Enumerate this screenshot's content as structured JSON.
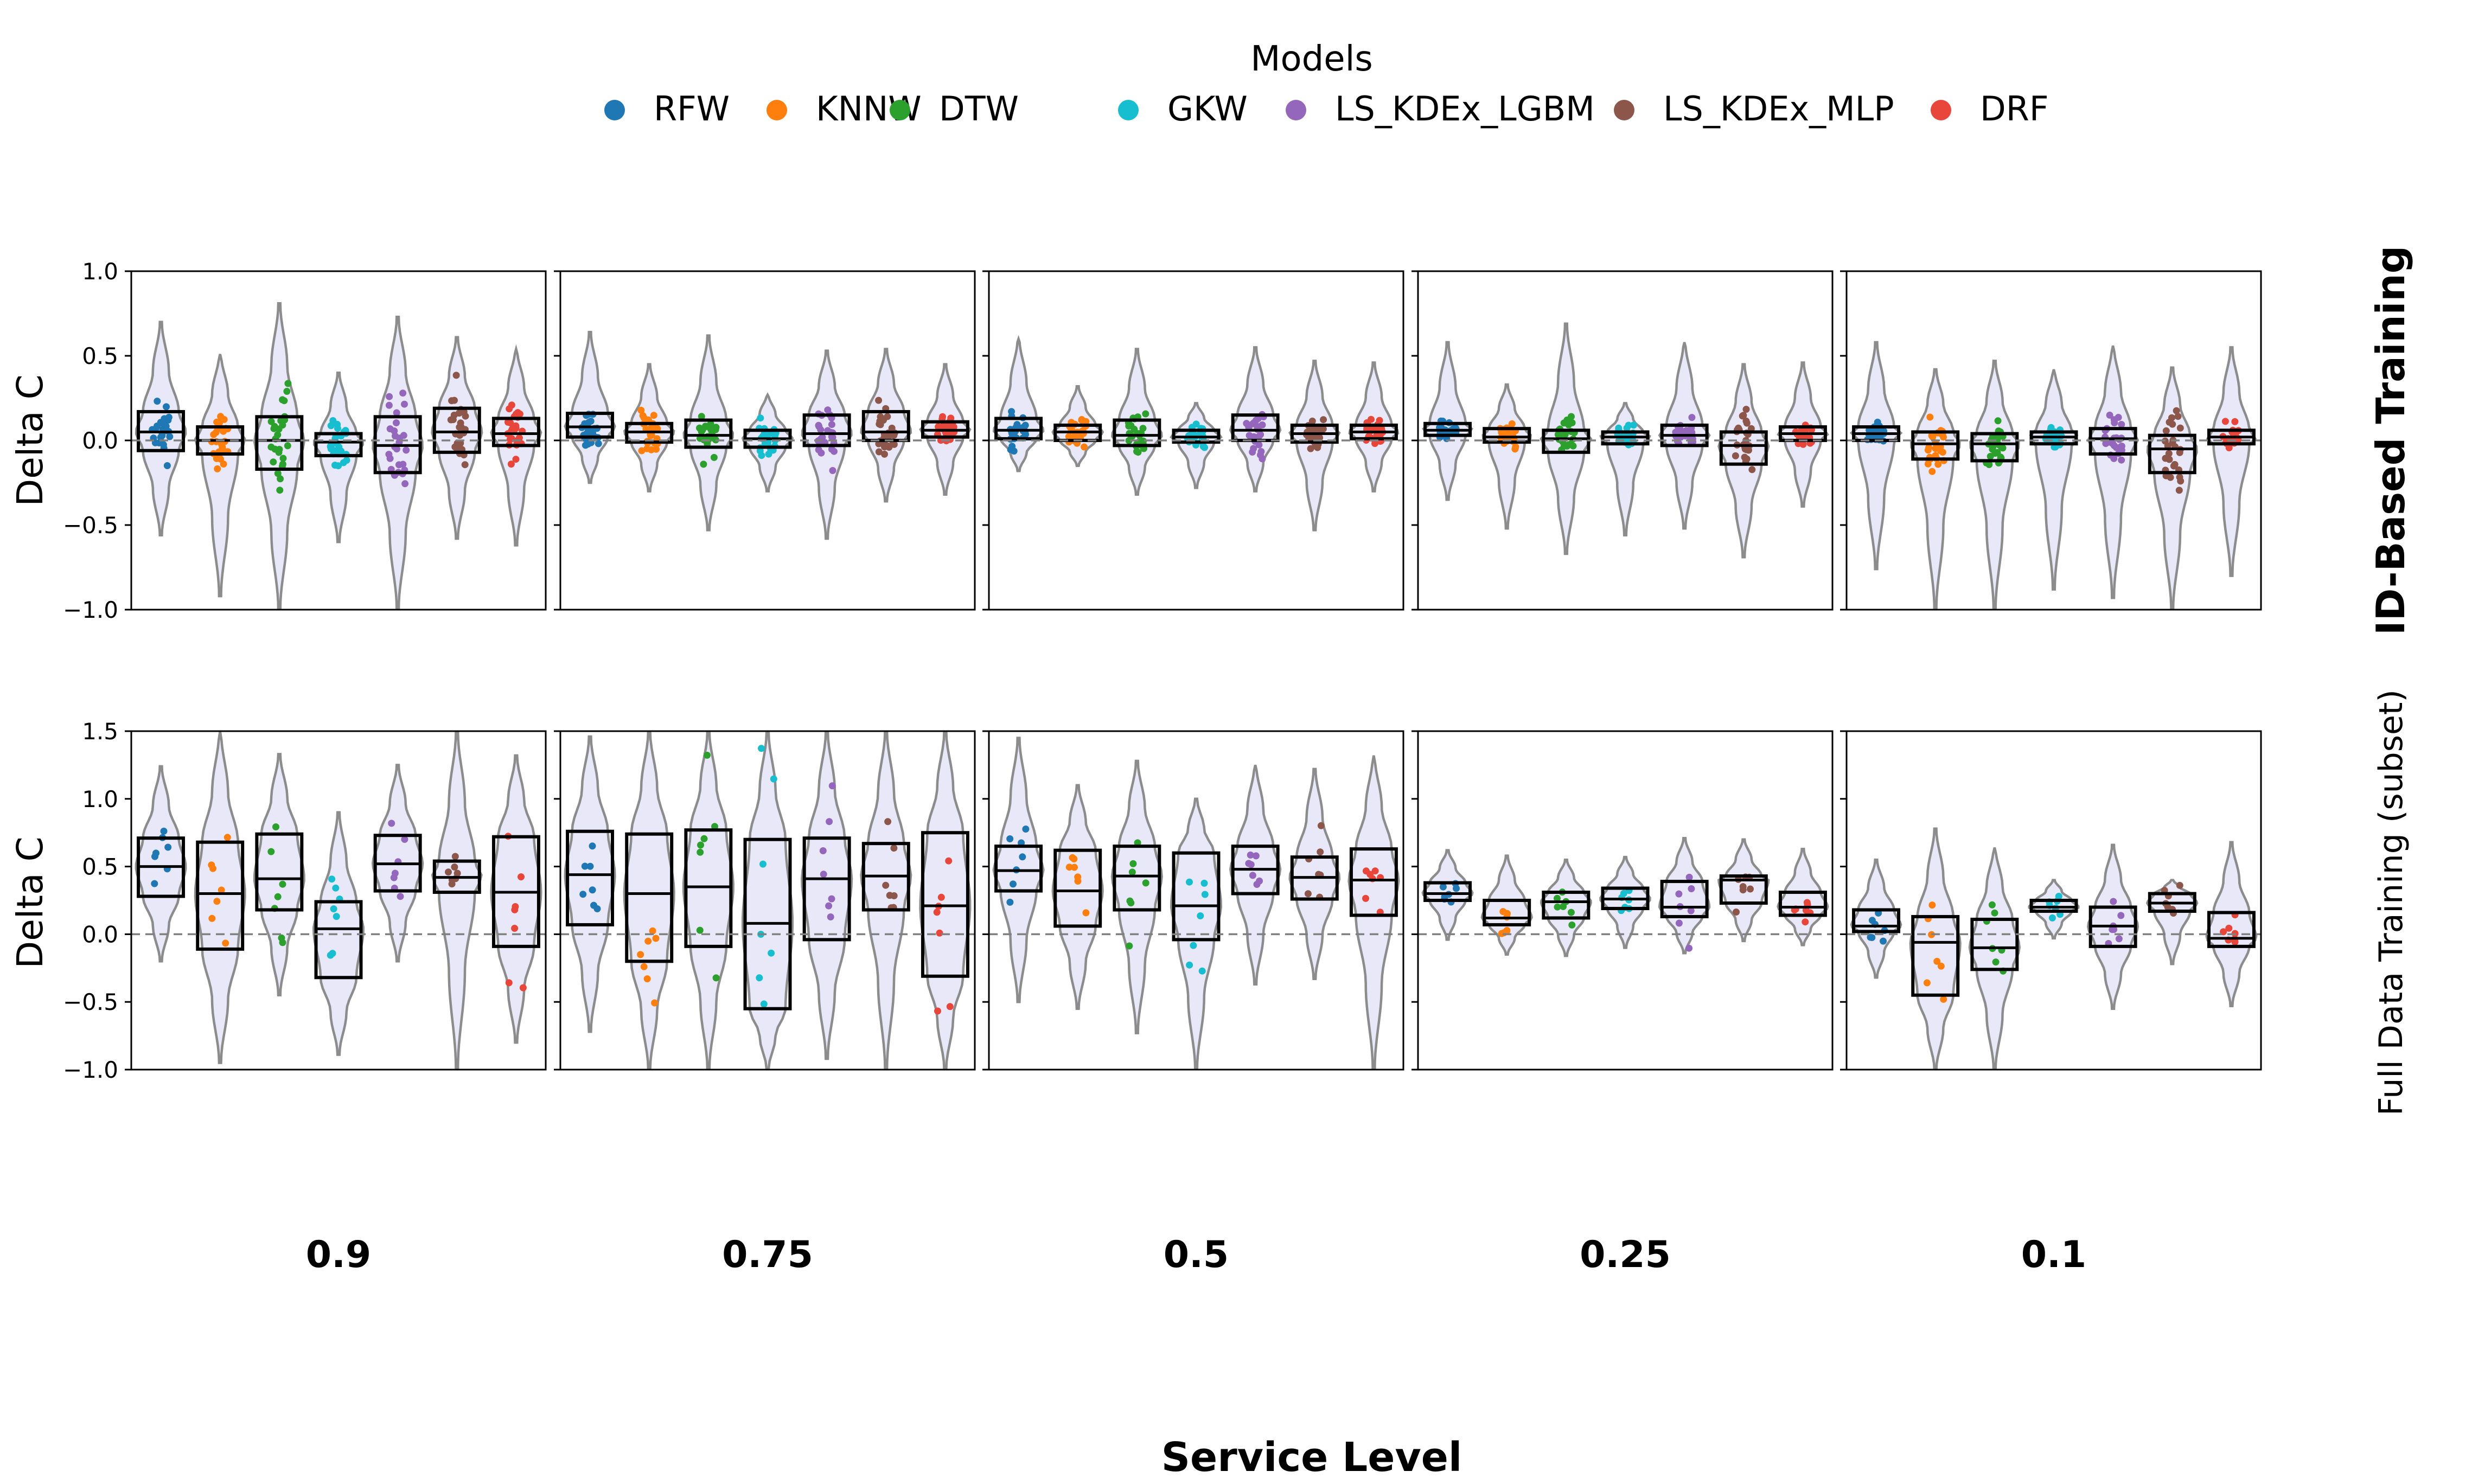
{
  "legend": {
    "title": "Models",
    "items": [
      {
        "name": "RFW",
        "color": "#1f77b4"
      },
      {
        "name": "KNNW",
        "color": "#ff7f0e"
      },
      {
        "name": "DTW",
        "color": "#2ca02c"
      },
      {
        "name": "GKW",
        "color": "#17becf"
      },
      {
        "name": "LS_KDEx_LGBM",
        "color": "#9467bd"
      },
      {
        "name": "LS_KDEx_MLP",
        "color": "#8c564b"
      },
      {
        "name": "DRF",
        "color": "#e8463a"
      }
    ]
  },
  "row_labels": [
    "ID-Based Training",
    "Full Data Training (subset)"
  ],
  "ylabel": "Delta C",
  "xlabel": "Service Level",
  "service_levels": [
    "0.9",
    "0.75",
    "0.5",
    "0.25",
    "0.1"
  ],
  "chart_data": {
    "type": "violin+box+strip",
    "shared_y_per_row": true,
    "reference_line_y": 0,
    "rows": [
      {
        "name": "ID-Based Training",
        "ylim": [
          -1.0,
          1.0
        ],
        "yticks": [
          "1.0",
          "0.5",
          "0.0",
          "−0.5",
          "−1.0"
        ],
        "ytick_values": [
          1.0,
          0.5,
          0.0,
          -0.5,
          -1.0
        ],
        "panels": [
          {
            "service_level": "0.9",
            "models": [
              {
                "q1": -0.06,
                "median": 0.05,
                "q3": 0.17,
                "vmin": -0.56,
                "vmax": 0.7
              },
              {
                "q1": -0.08,
                "median": 0.0,
                "q3": 0.08,
                "vmin": -0.92,
                "vmax": 0.51
              },
              {
                "q1": -0.17,
                "median": 0.0,
                "q3": 0.14,
                "vmin": -1.0,
                "vmax": 0.81
              },
              {
                "q1": -0.09,
                "median": -0.01,
                "q3": 0.04,
                "vmin": -0.6,
                "vmax": 0.4
              },
              {
                "q1": -0.19,
                "median": -0.03,
                "q3": 0.14,
                "vmin": -1.0,
                "vmax": 0.73
              },
              {
                "q1": -0.07,
                "median": 0.05,
                "q3": 0.19,
                "vmin": -0.58,
                "vmax": 0.61
              },
              {
                "q1": -0.03,
                "median": 0.04,
                "q3": 0.13,
                "vmin": -0.62,
                "vmax": 0.54
              }
            ]
          },
          {
            "service_level": "0.75",
            "models": [
              {
                "q1": 0.02,
                "median": 0.08,
                "q3": 0.16,
                "vmin": -0.25,
                "vmax": 0.64
              },
              {
                "q1": -0.01,
                "median": 0.05,
                "q3": 0.1,
                "vmin": -0.3,
                "vmax": 0.45
              },
              {
                "q1": -0.04,
                "median": 0.03,
                "q3": 0.12,
                "vmin": -0.53,
                "vmax": 0.62
              },
              {
                "q1": -0.04,
                "median": 0.01,
                "q3": 0.06,
                "vmin": -0.3,
                "vmax": 0.27
              },
              {
                "q1": -0.03,
                "median": 0.04,
                "q3": 0.15,
                "vmin": -0.58,
                "vmax": 0.53
              },
              {
                "q1": 0.0,
                "median": 0.05,
                "q3": 0.17,
                "vmin": -0.36,
                "vmax": 0.54
              },
              {
                "q1": 0.02,
                "median": 0.06,
                "q3": 0.11,
                "vmin": -0.32,
                "vmax": 0.45
              }
            ]
          },
          {
            "service_level": "0.5",
            "models": [
              {
                "q1": 0.01,
                "median": 0.06,
                "q3": 0.13,
                "vmin": -0.18,
                "vmax": 0.6
              },
              {
                "q1": 0.0,
                "median": 0.05,
                "q3": 0.09,
                "vmin": -0.15,
                "vmax": 0.32
              },
              {
                "q1": -0.03,
                "median": 0.03,
                "q3": 0.12,
                "vmin": -0.32,
                "vmax": 0.54
              },
              {
                "q1": -0.01,
                "median": 0.02,
                "q3": 0.06,
                "vmin": -0.28,
                "vmax": 0.22
              },
              {
                "q1": 0.0,
                "median": 0.06,
                "q3": 0.15,
                "vmin": -0.3,
                "vmax": 0.55
              },
              {
                "q1": -0.01,
                "median": 0.04,
                "q3": 0.09,
                "vmin": -0.53,
                "vmax": 0.47
              },
              {
                "q1": 0.01,
                "median": 0.05,
                "q3": 0.09,
                "vmin": -0.3,
                "vmax": 0.46
              }
            ]
          },
          {
            "service_level": "0.25",
            "models": [
              {
                "q1": 0.03,
                "median": 0.06,
                "q3": 0.1,
                "vmin": -0.35,
                "vmax": 0.58
              },
              {
                "q1": -0.01,
                "median": 0.02,
                "q3": 0.07,
                "vmin": -0.52,
                "vmax": 0.33
              },
              {
                "q1": -0.07,
                "median": 0.01,
                "q3": 0.06,
                "vmin": -0.67,
                "vmax": 0.69
              },
              {
                "q1": -0.02,
                "median": 0.02,
                "q3": 0.05,
                "vmin": -0.56,
                "vmax": 0.22
              },
              {
                "q1": -0.03,
                "median": 0.03,
                "q3": 0.09,
                "vmin": -0.52,
                "vmax": 0.58
              },
              {
                "q1": -0.14,
                "median": -0.03,
                "q3": 0.05,
                "vmin": -0.69,
                "vmax": 0.45
              },
              {
                "q1": 0.0,
                "median": 0.04,
                "q3": 0.08,
                "vmin": -0.39,
                "vmax": 0.46
              }
            ]
          },
          {
            "service_level": "0.1",
            "models": [
              {
                "q1": 0.0,
                "median": 0.04,
                "q3": 0.08,
                "vmin": -0.76,
                "vmax": 0.58
              },
              {
                "q1": -0.11,
                "median": -0.02,
                "q3": 0.05,
                "vmin": -1.0,
                "vmax": 0.42
              },
              {
                "q1": -0.12,
                "median": -0.02,
                "q3": 0.04,
                "vmin": -1.0,
                "vmax": 0.47
              },
              {
                "q1": -0.02,
                "median": 0.02,
                "q3": 0.05,
                "vmin": -0.88,
                "vmax": 0.42
              },
              {
                "q1": -0.08,
                "median": 0.01,
                "q3": 0.07,
                "vmin": -0.93,
                "vmax": 0.56
              },
              {
                "q1": -0.19,
                "median": -0.05,
                "q3": 0.03,
                "vmin": -1.0,
                "vmax": 0.43
              },
              {
                "q1": -0.02,
                "median": 0.02,
                "q3": 0.06,
                "vmin": -0.8,
                "vmax": 0.55
              }
            ]
          }
        ]
      },
      {
        "name": "Full Data Training (subset)",
        "ylim": [
          -1.0,
          1.5
        ],
        "yticks": [
          "1.5",
          "1.0",
          "0.5",
          "0.0",
          "−0.5",
          "−1.0"
        ],
        "ytick_values": [
          1.5,
          1.0,
          0.5,
          0.0,
          -0.5,
          -1.0
        ],
        "panels": [
          {
            "service_level": "0.9",
            "models": [
              {
                "q1": 0.28,
                "median": 0.5,
                "q3": 0.71,
                "vmin": -0.2,
                "vmax": 1.24
              },
              {
                "q1": -0.11,
                "median": 0.3,
                "q3": 0.68,
                "vmin": -0.95,
                "vmax": 1.5
              },
              {
                "q1": 0.18,
                "median": 0.41,
                "q3": 0.74,
                "vmin": -0.45,
                "vmax": 1.33
              },
              {
                "q1": -0.32,
                "median": 0.04,
                "q3": 0.24,
                "vmin": -0.89,
                "vmax": 0.9
              },
              {
                "q1": 0.32,
                "median": 0.52,
                "q3": 0.73,
                "vmin": -0.2,
                "vmax": 1.25
              },
              {
                "q1": 0.31,
                "median": 0.42,
                "q3": 0.54,
                "vmin": -1.0,
                "vmax": 1.5
              },
              {
                "q1": -0.09,
                "median": 0.31,
                "q3": 0.72,
                "vmin": -0.8,
                "vmax": 1.32
              }
            ]
          },
          {
            "service_level": "0.75",
            "models": [
              {
                "q1": 0.07,
                "median": 0.44,
                "q3": 0.76,
                "vmin": -0.72,
                "vmax": 1.46
              },
              {
                "q1": -0.2,
                "median": 0.3,
                "q3": 0.74,
                "vmin": -1.0,
                "vmax": 1.5
              },
              {
                "q1": -0.09,
                "median": 0.35,
                "q3": 0.77,
                "vmin": -1.0,
                "vmax": 1.5
              },
              {
                "q1": -0.55,
                "median": 0.08,
                "q3": 0.7,
                "vmin": -1.0,
                "vmax": 1.5
              },
              {
                "q1": -0.04,
                "median": 0.41,
                "q3": 0.71,
                "vmin": -0.92,
                "vmax": 1.5
              },
              {
                "q1": 0.18,
                "median": 0.43,
                "q3": 0.67,
                "vmin": -1.0,
                "vmax": 1.5
              },
              {
                "q1": -0.31,
                "median": 0.21,
                "q3": 0.75,
                "vmin": -1.0,
                "vmax": 1.5
              }
            ]
          },
          {
            "service_level": "0.5",
            "models": [
              {
                "q1": 0.32,
                "median": 0.47,
                "q3": 0.65,
                "vmin": -0.5,
                "vmax": 1.45
              },
              {
                "q1": 0.06,
                "median": 0.32,
                "q3": 0.62,
                "vmin": -0.55,
                "vmax": 1.1
              },
              {
                "q1": 0.18,
                "median": 0.43,
                "q3": 0.65,
                "vmin": -0.73,
                "vmax": 1.28
              },
              {
                "q1": -0.04,
                "median": 0.21,
                "q3": 0.6,
                "vmin": -1.0,
                "vmax": 1.0
              },
              {
                "q1": 0.3,
                "median": 0.48,
                "q3": 0.65,
                "vmin": -0.37,
                "vmax": 1.25
              },
              {
                "q1": 0.26,
                "median": 0.42,
                "q3": 0.57,
                "vmin": -0.33,
                "vmax": 1.22
              },
              {
                "q1": 0.14,
                "median": 0.4,
                "q3": 0.63,
                "vmin": -1.0,
                "vmax": 1.32
              }
            ]
          },
          {
            "service_level": "0.25",
            "models": [
              {
                "q1": 0.25,
                "median": 0.3,
                "q3": 0.38,
                "vmin": -0.04,
                "vmax": 0.62
              },
              {
                "q1": 0.07,
                "median": 0.12,
                "q3": 0.25,
                "vmin": -0.15,
                "vmax": 0.58
              },
              {
                "q1": 0.12,
                "median": 0.24,
                "q3": 0.31,
                "vmin": -0.16,
                "vmax": 0.55
              },
              {
                "q1": 0.19,
                "median": 0.26,
                "q3": 0.34,
                "vmin": -0.1,
                "vmax": 0.57
              },
              {
                "q1": 0.13,
                "median": 0.2,
                "q3": 0.39,
                "vmin": -0.14,
                "vmax": 0.71
              },
              {
                "q1": 0.23,
                "median": 0.4,
                "q3": 0.43,
                "vmin": -0.05,
                "vmax": 0.7
              },
              {
                "q1": 0.14,
                "median": 0.2,
                "q3": 0.31,
                "vmin": -0.08,
                "vmax": 0.63
              }
            ]
          },
          {
            "service_level": "0.1",
            "models": [
              {
                "q1": 0.02,
                "median": 0.06,
                "q3": 0.18,
                "vmin": -0.32,
                "vmax": 0.55
              },
              {
                "q1": -0.45,
                "median": -0.06,
                "q3": 0.13,
                "vmin": -1.0,
                "vmax": 0.78
              },
              {
                "q1": -0.26,
                "median": -0.1,
                "q3": 0.11,
                "vmin": -1.0,
                "vmax": 0.64
              },
              {
                "q1": 0.17,
                "median": 0.2,
                "q3": 0.25,
                "vmin": -0.03,
                "vmax": 0.4
              },
              {
                "q1": -0.09,
                "median": 0.06,
                "q3": 0.2,
                "vmin": -0.55,
                "vmax": 0.66
              },
              {
                "q1": 0.17,
                "median": 0.23,
                "q3": 0.3,
                "vmin": -0.22,
                "vmax": 0.4
              },
              {
                "q1": -0.09,
                "median": -0.03,
                "q3": 0.16,
                "vmin": -0.53,
                "vmax": 0.68
              }
            ]
          }
        ]
      }
    ]
  }
}
